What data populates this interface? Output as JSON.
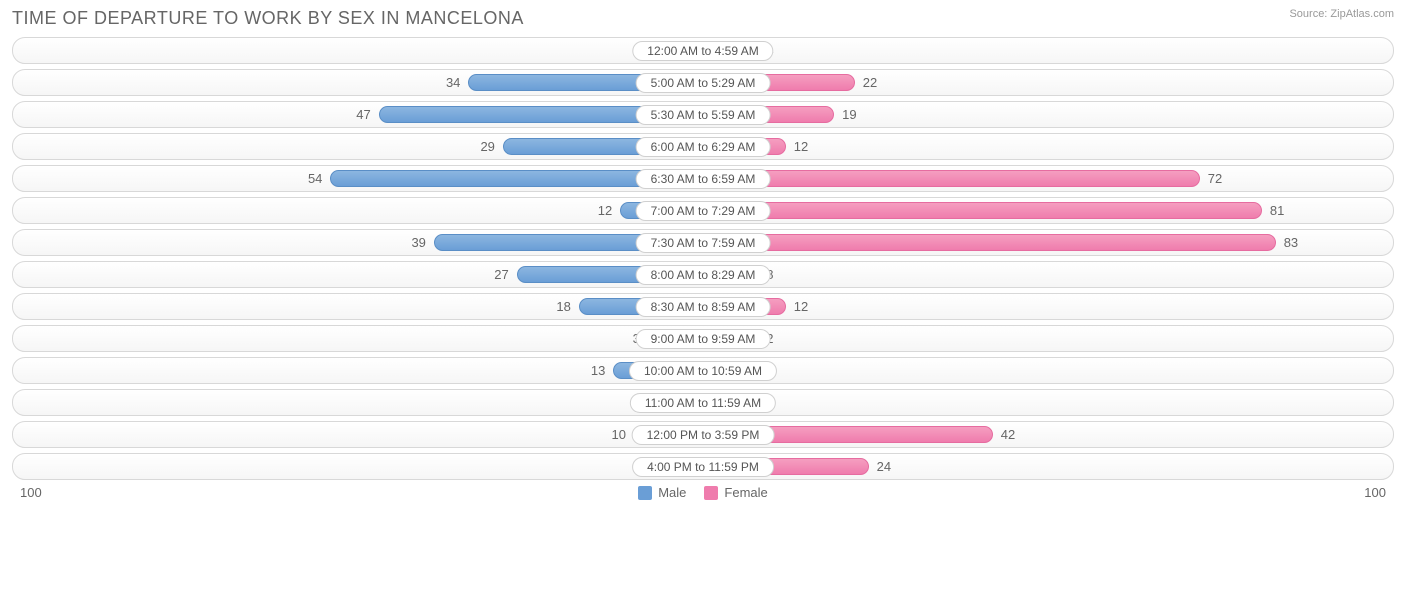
{
  "title": "TIME OF DEPARTURE TO WORK BY SEX IN MANCELONA",
  "source": "Source: ZipAtlas.com",
  "axis_max": 100,
  "axis_label_left": "100",
  "axis_label_right": "100",
  "legend": {
    "male": {
      "label": "Male",
      "color": "#6a9ed6"
    },
    "female": {
      "label": "Female",
      "color": "#ef7cad"
    }
  },
  "colors": {
    "male_bar": "#6a9ed6",
    "female_bar": "#ef7cad",
    "track_border": "#d8d8d8",
    "text": "#666666",
    "min_bar_pct": 8
  },
  "rows": [
    {
      "label": "12:00 AM to 4:59 AM",
      "male": 3,
      "female": 4
    },
    {
      "label": "5:00 AM to 5:29 AM",
      "male": 34,
      "female": 22
    },
    {
      "label": "5:30 AM to 5:59 AM",
      "male": 47,
      "female": 19
    },
    {
      "label": "6:00 AM to 6:29 AM",
      "male": 29,
      "female": 12
    },
    {
      "label": "6:30 AM to 6:59 AM",
      "male": 54,
      "female": 72
    },
    {
      "label": "7:00 AM to 7:29 AM",
      "male": 12,
      "female": 81
    },
    {
      "label": "7:30 AM to 7:59 AM",
      "male": 39,
      "female": 83
    },
    {
      "label": "8:00 AM to 8:29 AM",
      "male": 27,
      "female": 8
    },
    {
      "label": "8:30 AM to 8:59 AM",
      "male": 18,
      "female": 12
    },
    {
      "label": "9:00 AM to 9:59 AM",
      "male": 3,
      "female": 2
    },
    {
      "label": "10:00 AM to 10:59 AM",
      "male": 13,
      "female": 1
    },
    {
      "label": "11:00 AM to 11:59 AM",
      "male": 0,
      "female": 0
    },
    {
      "label": "12:00 PM to 3:59 PM",
      "male": 10,
      "female": 42
    },
    {
      "label": "4:00 PM to 11:59 PM",
      "male": 6,
      "female": 24
    }
  ]
}
